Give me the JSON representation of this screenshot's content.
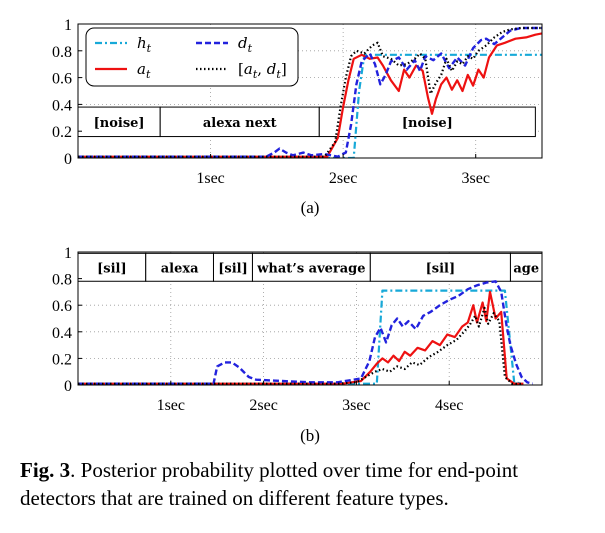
{
  "colors": {
    "h": "#17a9d8",
    "a": "#ee1111",
    "d": "#2222dd",
    "ad": "#000000"
  },
  "legend": {
    "h": "h_t",
    "d": "d_t",
    "a": "a_t",
    "ad": "[a_t, d_t]"
  },
  "caption": {
    "label": "Fig. 3",
    "text": ". Posterior probability plotted over time for end-point detectors that are trained on different feature types."
  },
  "chart_data": [
    {
      "type": "line",
      "subfigure_label": "(a)",
      "xlim": [
        0,
        3.5
      ],
      "ylim": [
        0,
        1
      ],
      "x_ticks": [
        {
          "value": 1,
          "label": "1sec"
        },
        {
          "value": 2,
          "label": "2sec"
        },
        {
          "value": 3,
          "label": "3sec"
        }
      ],
      "y_ticks": [
        {
          "value": 0,
          "label": "0"
        },
        {
          "value": 0.2,
          "label": "0.2"
        },
        {
          "value": 0.4,
          "label": "0.4"
        },
        {
          "value": 0.6,
          "label": "0.6"
        },
        {
          "value": 0.8,
          "label": "0.8"
        },
        {
          "value": 1,
          "label": "1"
        }
      ],
      "grid": true,
      "legend_position": "top-left",
      "segments": [
        {
          "label": "[noise]",
          "start": 0,
          "end": 0.62
        },
        {
          "label": "alexa next",
          "start": 0.62,
          "end": 1.82
        },
        {
          "label": "[noise]",
          "start": 1.82,
          "end": 3.45
        }
      ],
      "segment_band": [
        0.16,
        0.38
      ],
      "series": [
        {
          "key": "h",
          "name": "h_t",
          "points": [
            [
              0,
              0
            ],
            [
              2.08,
              0
            ],
            [
              2.12,
              0.5
            ],
            [
              2.16,
              0.77
            ],
            [
              3.5,
              0.77
            ]
          ]
        },
        {
          "key": "a",
          "name": "a_t",
          "points": [
            [
              0,
              0.01
            ],
            [
              1.88,
              0.01
            ],
            [
              1.96,
              0.15
            ],
            [
              2.0,
              0.38
            ],
            [
              2.04,
              0.58
            ],
            [
              2.08,
              0.74
            ],
            [
              2.14,
              0.77
            ],
            [
              2.2,
              0.74
            ],
            [
              2.26,
              0.75
            ],
            [
              2.3,
              0.69
            ],
            [
              2.36,
              0.58
            ],
            [
              2.42,
              0.5
            ],
            [
              2.46,
              0.66
            ],
            [
              2.5,
              0.6
            ],
            [
              2.55,
              0.69
            ],
            [
              2.6,
              0.65
            ],
            [
              2.64,
              0.45
            ],
            [
              2.67,
              0.33
            ],
            [
              2.7,
              0.44
            ],
            [
              2.74,
              0.55
            ],
            [
              2.78,
              0.6
            ],
            [
              2.82,
              0.51
            ],
            [
              2.86,
              0.58
            ],
            [
              2.9,
              0.5
            ],
            [
              2.94,
              0.62
            ],
            [
              2.98,
              0.54
            ],
            [
              3.02,
              0.66
            ],
            [
              3.06,
              0.6
            ],
            [
              3.1,
              0.75
            ],
            [
              3.16,
              0.84
            ],
            [
              3.22,
              0.86
            ],
            [
              3.3,
              0.89
            ],
            [
              3.38,
              0.9
            ],
            [
              3.45,
              0.92
            ],
            [
              3.5,
              0.93
            ]
          ]
        },
        {
          "key": "d",
          "name": "d_t",
          "points": [
            [
              0,
              0.01
            ],
            [
              1.42,
              0.01
            ],
            [
              1.48,
              0.04
            ],
            [
              1.52,
              0.07
            ],
            [
              1.57,
              0.04
            ],
            [
              1.62,
              0.02
            ],
            [
              1.7,
              0.04
            ],
            [
              1.76,
              0.02
            ],
            [
              1.86,
              0.03
            ],
            [
              1.96,
              0.01
            ],
            [
              2.02,
              0.04
            ],
            [
              2.06,
              0.25
            ],
            [
              2.1,
              0.55
            ],
            [
              2.14,
              0.72
            ],
            [
              2.2,
              0.78
            ],
            [
              2.24,
              0.7
            ],
            [
              2.28,
              0.55
            ],
            [
              2.32,
              0.62
            ],
            [
              2.36,
              0.72
            ],
            [
              2.42,
              0.75
            ],
            [
              2.48,
              0.66
            ],
            [
              2.54,
              0.73
            ],
            [
              2.58,
              0.65
            ],
            [
              2.62,
              0.76
            ],
            [
              2.68,
              0.73
            ],
            [
              2.74,
              0.78
            ],
            [
              2.8,
              0.67
            ],
            [
              2.86,
              0.75
            ],
            [
              2.92,
              0.69
            ],
            [
              2.98,
              0.82
            ],
            [
              3.04,
              0.88
            ],
            [
              3.08,
              0.89
            ],
            [
              3.14,
              0.85
            ],
            [
              3.2,
              0.9
            ],
            [
              3.26,
              0.95
            ],
            [
              3.34,
              0.97
            ],
            [
              3.42,
              0.97
            ],
            [
              3.5,
              0.97
            ]
          ]
        },
        {
          "key": "ad",
          "name": "[a_t, d_t]",
          "points": [
            [
              0,
              0.01
            ],
            [
              1.86,
              0.01
            ],
            [
              1.94,
              0.12
            ],
            [
              1.98,
              0.38
            ],
            [
              2.02,
              0.6
            ],
            [
              2.06,
              0.76
            ],
            [
              2.1,
              0.8
            ],
            [
              2.16,
              0.78
            ],
            [
              2.22,
              0.84
            ],
            [
              2.26,
              0.86
            ],
            [
              2.3,
              0.76
            ],
            [
              2.36,
              0.74
            ],
            [
              2.42,
              0.69
            ],
            [
              2.48,
              0.7
            ],
            [
              2.54,
              0.74
            ],
            [
              2.58,
              0.78
            ],
            [
              2.62,
              0.74
            ],
            [
              2.66,
              0.48
            ],
            [
              2.7,
              0.56
            ],
            [
              2.74,
              0.62
            ],
            [
              2.78,
              0.74
            ],
            [
              2.82,
              0.65
            ],
            [
              2.86,
              0.72
            ],
            [
              2.9,
              0.7
            ],
            [
              2.94,
              0.76
            ],
            [
              2.98,
              0.74
            ],
            [
              3.02,
              0.8
            ],
            [
              3.08,
              0.84
            ],
            [
              3.14,
              0.9
            ],
            [
              3.2,
              0.94
            ],
            [
              3.26,
              0.96
            ],
            [
              3.34,
              0.97
            ],
            [
              3.42,
              0.97
            ],
            [
              3.5,
              0.97
            ]
          ]
        }
      ]
    },
    {
      "type": "line",
      "subfigure_label": "(b)",
      "xlim": [
        0,
        5
      ],
      "ylim": [
        0,
        1
      ],
      "x_ticks": [
        {
          "value": 1,
          "label": "1sec"
        },
        {
          "value": 2,
          "label": "2sec"
        },
        {
          "value": 3,
          "label": "3sec"
        },
        {
          "value": 4,
          "label": "4sec"
        }
      ],
      "y_ticks": [
        {
          "value": 0,
          "label": "0"
        },
        {
          "value": 0.2,
          "label": "0.2"
        },
        {
          "value": 0.4,
          "label": "0.4"
        },
        {
          "value": 0.6,
          "label": "0.6"
        },
        {
          "value": 0.8,
          "label": "0.8"
        },
        {
          "value": 1,
          "label": "1"
        }
      ],
      "grid": true,
      "segments": [
        {
          "label": "[sil]",
          "start": 0,
          "end": 0.73
        },
        {
          "label": "alexa",
          "start": 0.73,
          "end": 1.46
        },
        {
          "label": "[sil]",
          "start": 1.46,
          "end": 1.88
        },
        {
          "label": "what’s average",
          "start": 1.88,
          "end": 3.15
        },
        {
          "label": "[sil]",
          "start": 3.15,
          "end": 4.66
        },
        {
          "label": "age",
          "start": 4.66,
          "end": 5.0
        }
      ],
      "segment_band": [
        0.78,
        0.99
      ],
      "series": [
        {
          "key": "h",
          "name": "h_t",
          "points": [
            [
              0,
              0.01
            ],
            [
              3.22,
              0.01
            ],
            [
              3.28,
              0.71
            ],
            [
              4.6,
              0.71
            ],
            [
              4.7,
              0.02
            ],
            [
              4.8,
              0.01
            ]
          ]
        },
        {
          "key": "a",
          "name": "a_t",
          "points": [
            [
              0,
              0.01
            ],
            [
              2.85,
              0.01
            ],
            [
              3.05,
              0.03
            ],
            [
              3.15,
              0.1
            ],
            [
              3.22,
              0.16
            ],
            [
              3.28,
              0.2
            ],
            [
              3.34,
              0.17
            ],
            [
              3.4,
              0.22
            ],
            [
              3.46,
              0.18
            ],
            [
              3.52,
              0.25
            ],
            [
              3.58,
              0.22
            ],
            [
              3.66,
              0.28
            ],
            [
              3.74,
              0.26
            ],
            [
              3.82,
              0.33
            ],
            [
              3.9,
              0.3
            ],
            [
              3.98,
              0.38
            ],
            [
              4.06,
              0.36
            ],
            [
              4.14,
              0.44
            ],
            [
              4.2,
              0.47
            ],
            [
              4.26,
              0.6
            ],
            [
              4.3,
              0.47
            ],
            [
              4.36,
              0.62
            ],
            [
              4.4,
              0.48
            ],
            [
              4.44,
              0.7
            ],
            [
              4.5,
              0.5
            ],
            [
              4.56,
              0.55
            ],
            [
              4.62,
              0.05
            ],
            [
              4.7,
              0.01
            ],
            [
              4.8,
              0.01
            ]
          ]
        },
        {
          "key": "d",
          "name": "d_t",
          "points": [
            [
              0,
              0.01
            ],
            [
              1.46,
              0.01
            ],
            [
              1.5,
              0.14
            ],
            [
              1.58,
              0.17
            ],
            [
              1.66,
              0.17
            ],
            [
              1.74,
              0.13
            ],
            [
              1.84,
              0.06
            ],
            [
              1.92,
              0.04
            ],
            [
              2.2,
              0.03
            ],
            [
              2.5,
              0.02
            ],
            [
              2.8,
              0.02
            ],
            [
              3.05,
              0.05
            ],
            [
              3.14,
              0.18
            ],
            [
              3.2,
              0.36
            ],
            [
              3.26,
              0.43
            ],
            [
              3.32,
              0.32
            ],
            [
              3.38,
              0.45
            ],
            [
              3.44,
              0.5
            ],
            [
              3.5,
              0.44
            ],
            [
              3.56,
              0.48
            ],
            [
              3.64,
              0.42
            ],
            [
              3.72,
              0.52
            ],
            [
              3.8,
              0.55
            ],
            [
              3.9,
              0.6
            ],
            [
              4.0,
              0.64
            ],
            [
              4.1,
              0.67
            ],
            [
              4.2,
              0.72
            ],
            [
              4.3,
              0.75
            ],
            [
              4.4,
              0.77
            ],
            [
              4.5,
              0.78
            ],
            [
              4.56,
              0.7
            ],
            [
              4.62,
              0.44
            ],
            [
              4.66,
              0.3
            ],
            [
              4.72,
              0.16
            ],
            [
              4.78,
              0.06
            ],
            [
              4.84,
              0.02
            ],
            [
              4.9,
              0.01
            ]
          ]
        },
        {
          "key": "ad",
          "name": "[a_t, d_t]",
          "points": [
            [
              0,
              0.01
            ],
            [
              2.8,
              0.01
            ],
            [
              3.0,
              0.02
            ],
            [
              3.1,
              0.06
            ],
            [
              3.2,
              0.1
            ],
            [
              3.28,
              0.12
            ],
            [
              3.36,
              0.1
            ],
            [
              3.44,
              0.14
            ],
            [
              3.52,
              0.12
            ],
            [
              3.6,
              0.17
            ],
            [
              3.68,
              0.15
            ],
            [
              3.78,
              0.21
            ],
            [
              3.88,
              0.25
            ],
            [
              3.98,
              0.3
            ],
            [
              4.08,
              0.34
            ],
            [
              4.16,
              0.4
            ],
            [
              4.22,
              0.45
            ],
            [
              4.28,
              0.52
            ],
            [
              4.32,
              0.44
            ],
            [
              4.38,
              0.58
            ],
            [
              4.42,
              0.46
            ],
            [
              4.48,
              0.54
            ],
            [
              4.54,
              0.48
            ],
            [
              4.6,
              0.06
            ],
            [
              4.68,
              0.01
            ],
            [
              4.8,
              0.01
            ]
          ]
        }
      ]
    }
  ]
}
